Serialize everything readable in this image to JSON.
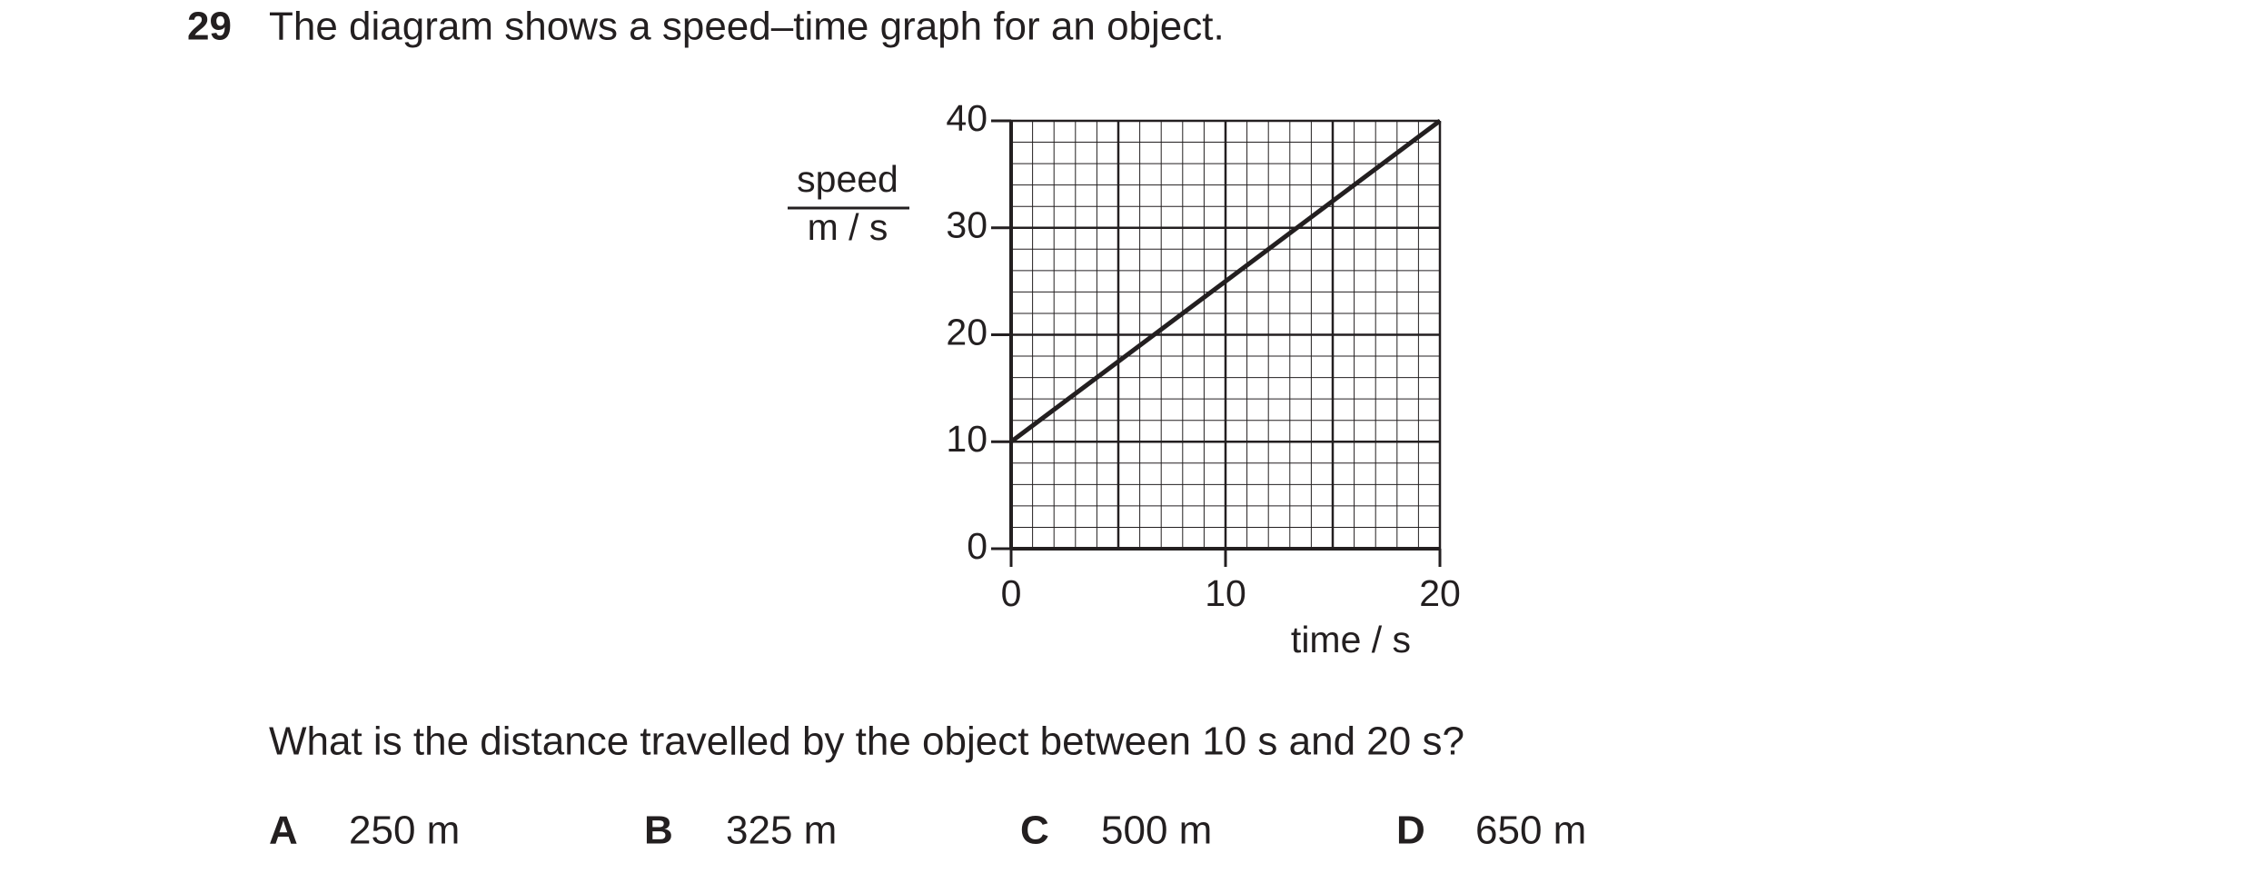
{
  "question": {
    "number": "29",
    "text": "The diagram shows a speed–time graph for an object.",
    "prompt": "What is the distance travelled by the object between 10 s and 20 s?",
    "options": [
      {
        "letter": "A",
        "text": "250 m"
      },
      {
        "letter": "B",
        "text": "325 m"
      },
      {
        "letter": "C",
        "text": "500 m"
      },
      {
        "letter": "D",
        "text": "650 m"
      }
    ]
  },
  "chart_data": {
    "type": "line",
    "ylabel": {
      "quantity": "speed",
      "unit": "m / s"
    },
    "xlabel": "time / s",
    "x": [
      0,
      20
    ],
    "values": [
      10,
      40
    ],
    "color": "#231f20",
    "xlim": [
      0,
      20
    ],
    "ylim": [
      0,
      40
    ],
    "xticks": [
      0,
      10,
      20
    ],
    "yticks": [
      0,
      10,
      20,
      30,
      40
    ],
    "grid": true
  }
}
